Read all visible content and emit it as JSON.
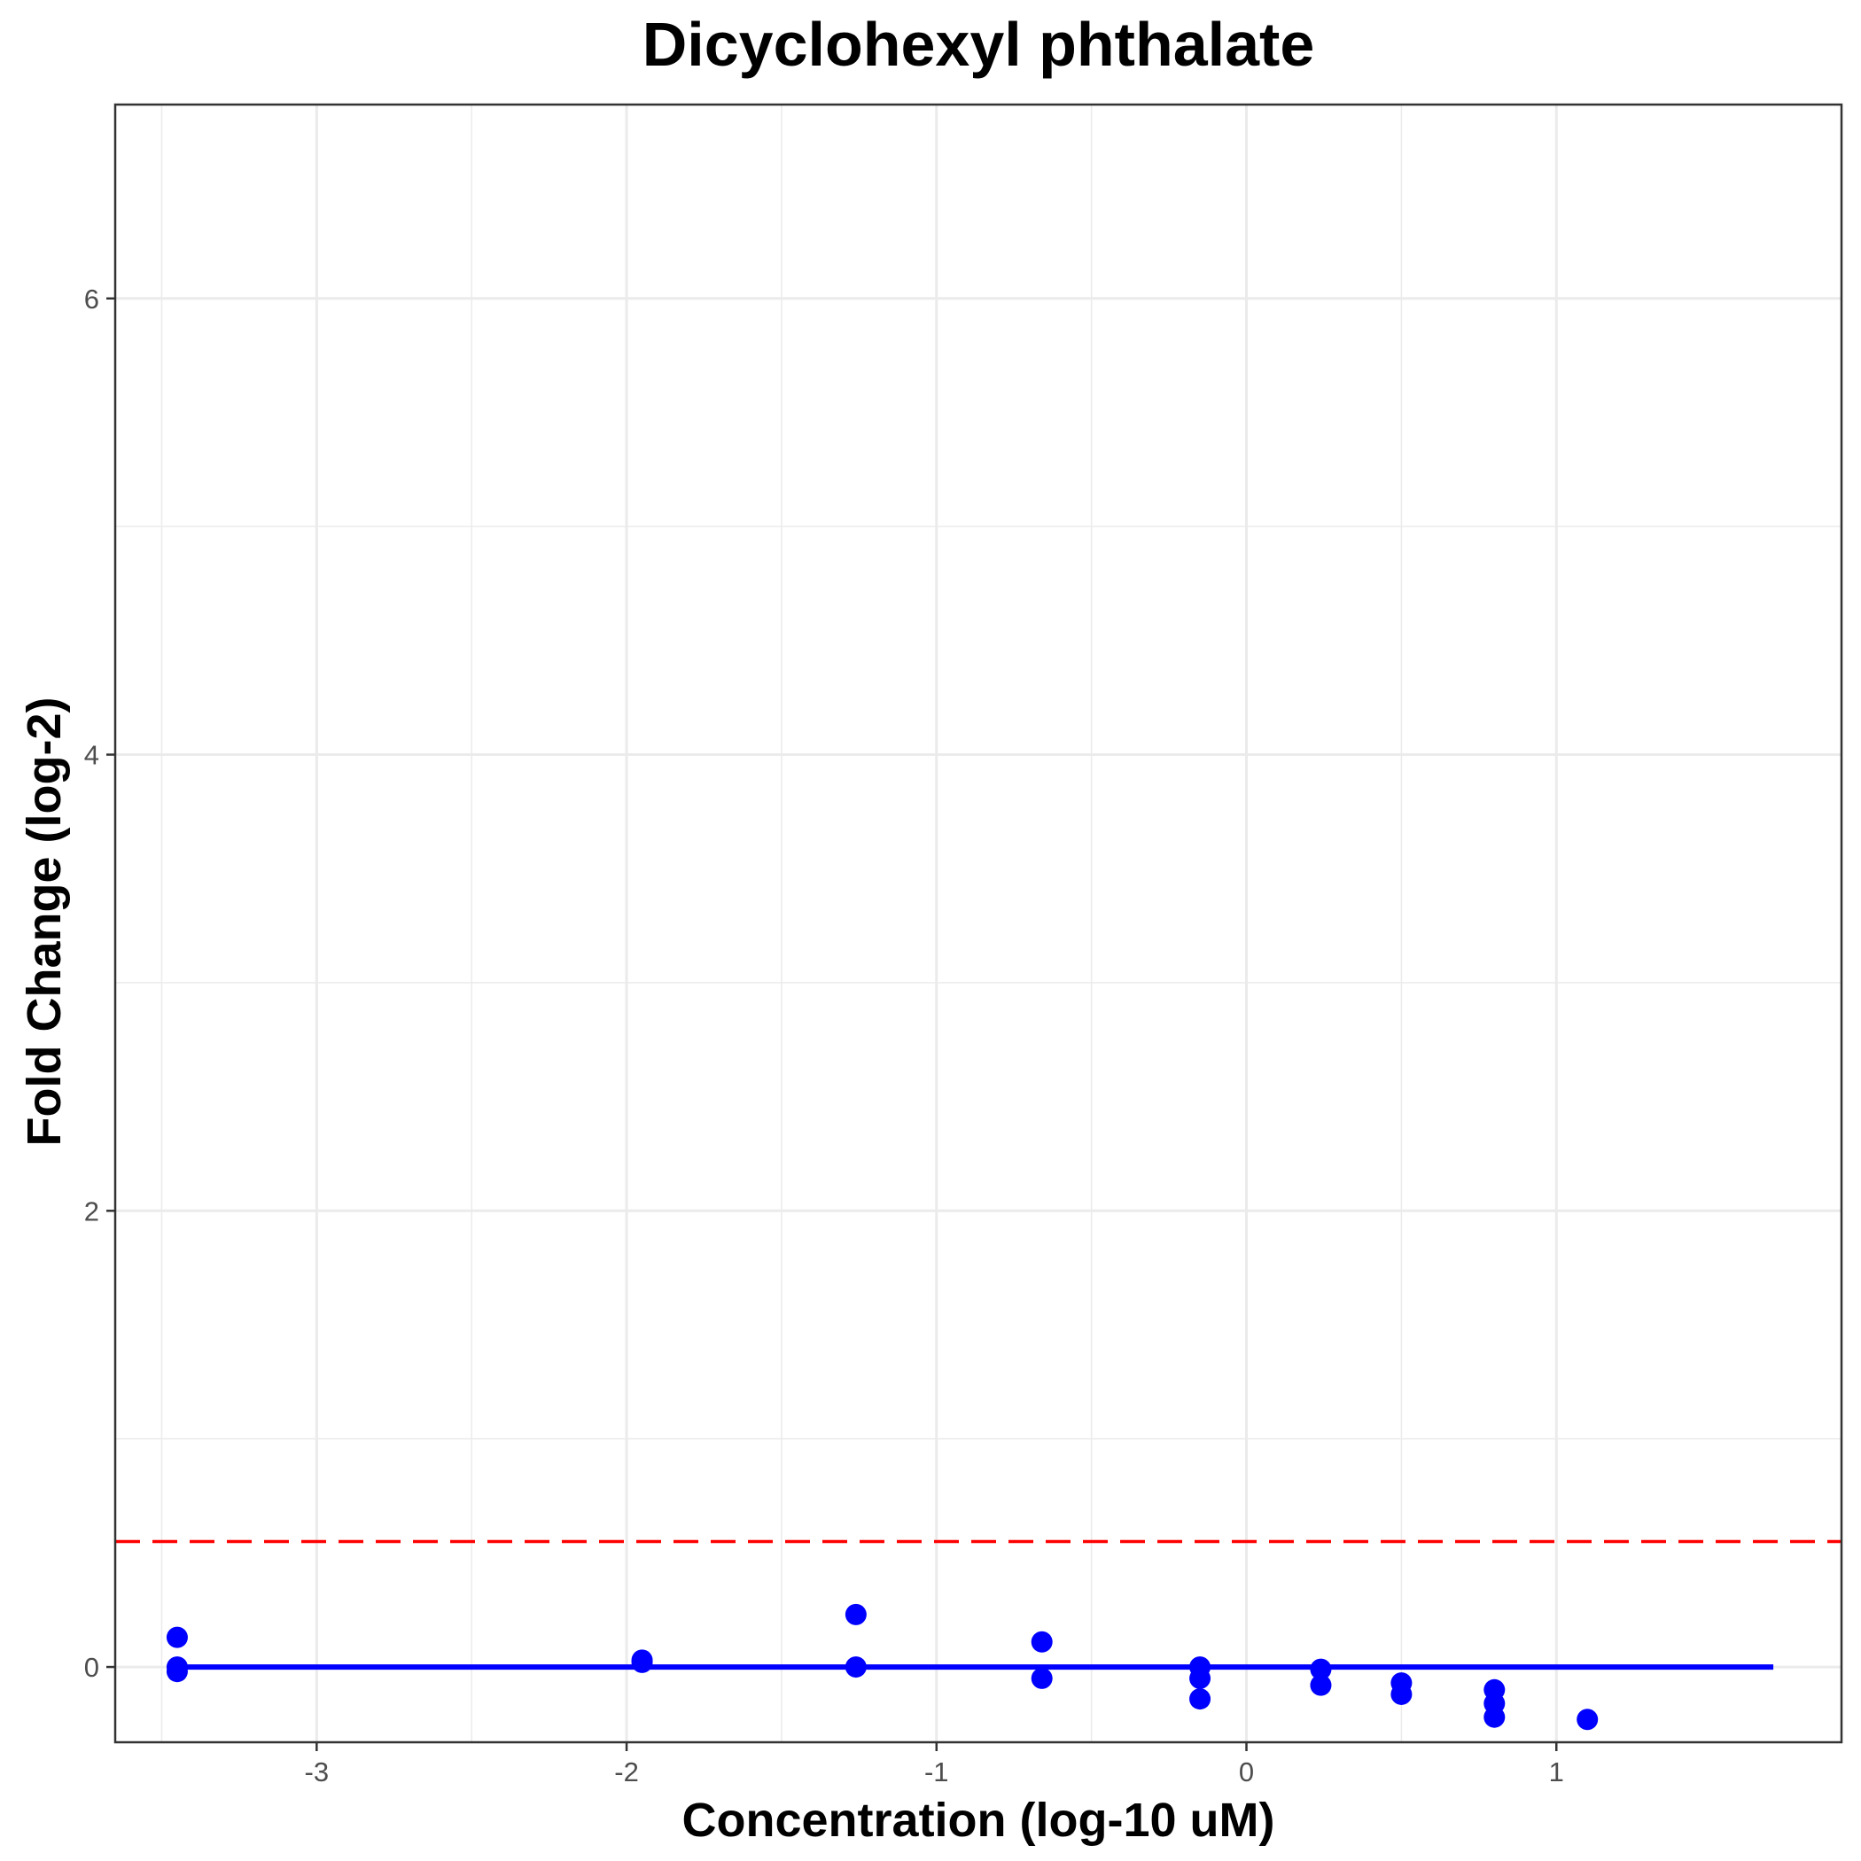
{
  "chart_data": {
    "type": "scatter",
    "title": "Dicyclohexyl phthalate",
    "xlabel": "Concentration (log-10 uM)",
    "ylabel": "Fold Change (log-2)",
    "xlim": [
      -3.65,
      1.92
    ],
    "ylim": [
      -0.33,
      6.85
    ],
    "x_ticks": [
      -3,
      -2,
      -1,
      0,
      1
    ],
    "y_ticks": [
      0,
      2,
      4,
      6
    ],
    "grid": true,
    "points": [
      {
        "x": -3.45,
        "y": 0.13
      },
      {
        "x": -3.45,
        "y": 0.0
      },
      {
        "x": -3.45,
        "y": -0.02
      },
      {
        "x": -1.95,
        "y": 0.03
      },
      {
        "x": -1.95,
        "y": 0.02
      },
      {
        "x": -1.26,
        "y": 0.23
      },
      {
        "x": -1.26,
        "y": 0.0
      },
      {
        "x": -0.66,
        "y": 0.11
      },
      {
        "x": -0.66,
        "y": -0.05
      },
      {
        "x": -0.15,
        "y": 0.0
      },
      {
        "x": -0.15,
        "y": -0.05
      },
      {
        "x": -0.15,
        "y": -0.14
      },
      {
        "x": 0.24,
        "y": -0.01
      },
      {
        "x": 0.24,
        "y": -0.08
      },
      {
        "x": 0.5,
        "y": -0.07
      },
      {
        "x": 0.5,
        "y": -0.12
      },
      {
        "x": 0.8,
        "y": -0.1
      },
      {
        "x": 0.8,
        "y": -0.16
      },
      {
        "x": 0.8,
        "y": -0.22
      },
      {
        "x": 1.1,
        "y": -0.23
      }
    ],
    "fit_line": {
      "x": [
        -3.45,
        1.7
      ],
      "y": [
        0,
        0
      ]
    },
    "threshold": 0.55,
    "colors": {
      "points": "#0000ff",
      "fit_line": "#0000ff",
      "threshold": "#ff0000",
      "grid": "#ebebeb",
      "panel_border": "#333333"
    }
  }
}
